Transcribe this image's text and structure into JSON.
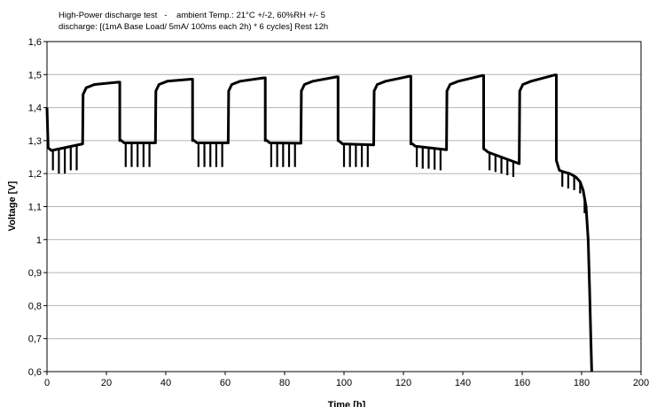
{
  "chart_data": {
    "type": "line",
    "title": "High-Power discharge test   -    ambient Temp.: 21°C +/-2, 60%RH +/- 5",
    "subtitle": "discharge: [(1mA Base Load/ 5mA/ 100ms each 2h) * 6 cycles] Rest 12h",
    "xlabel": "Time [h]",
    "ylabel": "Voltage [V]",
    "xlim": [
      0,
      200
    ],
    "ylim": [
      0.6,
      1.6
    ],
    "x_ticks": [
      "0",
      "20",
      "40",
      "60",
      "80",
      "100",
      "120",
      "140",
      "160",
      "180",
      "200"
    ],
    "y_ticks": [
      "0,6",
      "0,7",
      "0,8",
      "0,9",
      "1",
      "1,1",
      "1,2",
      "1,3",
      "1,4",
      "1,5",
      "1,6"
    ],
    "grid": true,
    "legend": "none",
    "series": [
      {
        "cycles": [
          {
            "discharge_start": 0,
            "discharge_end": 12,
            "v_start": 1.4,
            "v_plateau": 1.27,
            "v_end": 1.29,
            "pulse_times": [
              2,
              4,
              6,
              8,
              10
            ],
            "pulse_min": [
              1.21,
              1.2,
              1.2,
              1.21,
              1.21
            ],
            "rest_start_v": 1.44,
            "rest_end_v": 1.477
          },
          {
            "discharge_start": 24.5,
            "discharge_end": 36.5,
            "v_start": 1.3,
            "v_plateau": 1.293,
            "v_end": 1.293,
            "pulse_times": [
              26.5,
              28.5,
              30.5,
              32.5,
              34.5
            ],
            "pulse_min": [
              1.22,
              1.22,
              1.22,
              1.22,
              1.22
            ],
            "rest_start_v": 1.45,
            "rest_end_v": 1.486
          },
          {
            "discharge_start": 49,
            "discharge_end": 61,
            "v_start": 1.3,
            "v_plateau": 1.293,
            "v_end": 1.293,
            "pulse_times": [
              51,
              53,
              55,
              57,
              59
            ],
            "pulse_min": [
              1.22,
              1.22,
              1.22,
              1.22,
              1.22
            ],
            "rest_start_v": 1.45,
            "rest_end_v": 1.49
          },
          {
            "discharge_start": 73.5,
            "discharge_end": 85.5,
            "v_start": 1.3,
            "v_plateau": 1.293,
            "v_end": 1.292,
            "pulse_times": [
              75.5,
              77.5,
              79.5,
              81.5,
              83.5
            ],
            "pulse_min": [
              1.22,
              1.22,
              1.22,
              1.22,
              1.22
            ],
            "rest_start_v": 1.45,
            "rest_end_v": 1.493
          },
          {
            "discharge_start": 98,
            "discharge_end": 110,
            "v_start": 1.3,
            "v_plateau": 1.29,
            "v_end": 1.287,
            "pulse_times": [
              100,
              102,
              104,
              106,
              108
            ],
            "pulse_min": [
              1.22,
              1.22,
              1.22,
              1.22,
              1.22
            ],
            "rest_start_v": 1.45,
            "rest_end_v": 1.495
          },
          {
            "discharge_start": 122.5,
            "discharge_end": 134.5,
            "v_start": 1.29,
            "v_plateau": 1.283,
            "v_end": 1.272,
            "pulse_times": [
              124.5,
              126.5,
              128.5,
              130.5,
              132.5
            ],
            "pulse_min": [
              1.22,
              1.215,
              1.215,
              1.212,
              1.21
            ],
            "rest_start_v": 1.45,
            "rest_end_v": 1.497
          },
          {
            "discharge_start": 147,
            "discharge_end": 159,
            "v_start": 1.275,
            "v_plateau": 1.265,
            "v_end": 1.23,
            "pulse_times": [
              149,
              151,
              153,
              155,
              157
            ],
            "pulse_min": [
              1.21,
              1.205,
              1.2,
              1.195,
              1.19
            ],
            "rest_start_v": 1.45,
            "rest_end_v": 1.499
          }
        ],
        "final_discharge": {
          "x": [
            171.5,
            172.5,
            174,
            176,
            178,
            179.5,
            180.5,
            181.5,
            182.2,
            182.7,
            183.1,
            183.4
          ],
          "y": [
            1.24,
            1.21,
            1.205,
            1.2,
            1.19,
            1.175,
            1.15,
            1.1,
            1.0,
            0.85,
            0.7,
            0.6
          ],
          "pulse_times": [
            173.5,
            175.5,
            177.5,
            179.5,
            181
          ],
          "pulse_min": [
            1.16,
            1.155,
            1.15,
            1.14,
            1.08
          ]
        }
      }
    ]
  }
}
